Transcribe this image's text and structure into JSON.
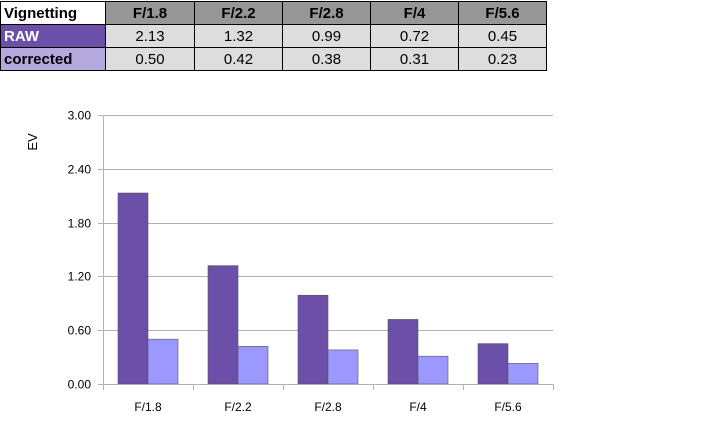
{
  "table": {
    "corner_label": "Vignetting",
    "columns": [
      "F/1.8",
      "F/2.2",
      "F/2.8",
      "F/4",
      "F/5.6"
    ],
    "rows": [
      {
        "label": "RAW",
        "label_bg": "#6b4fa8",
        "label_color": "#ffffff",
        "values": [
          "2.13",
          "1.32",
          "0.99",
          "0.72",
          "0.45"
        ]
      },
      {
        "label": "corrected",
        "label_bg": "#b5a8dc",
        "label_color": "#000000",
        "values": [
          "0.50",
          "0.42",
          "0.38",
          "0.31",
          "0.23"
        ]
      }
    ]
  },
  "chart_data": {
    "type": "bar",
    "categories": [
      "F/1.8",
      "F/2.2",
      "F/2.8",
      "F/4",
      "F/5.6"
    ],
    "series": [
      {
        "values": [
          2.13,
          1.32,
          0.99,
          0.72,
          0.45
        ],
        "color": "#6b4fa8"
      },
      {
        "values": [
          0.5,
          0.42,
          0.38,
          0.31,
          0.23
        ],
        "color": "#9b98ff"
      }
    ],
    "ylabel": "EV",
    "xlabel": "",
    "ylim": [
      0,
      3
    ],
    "yticks": [
      "0.00",
      "0.60",
      "1.20",
      "1.80",
      "2.40",
      "3.00"
    ],
    "ytick_values": [
      0,
      0.6,
      1.2,
      1.8,
      2.4,
      3.0
    ],
    "grid": true,
    "legend": "none"
  }
}
